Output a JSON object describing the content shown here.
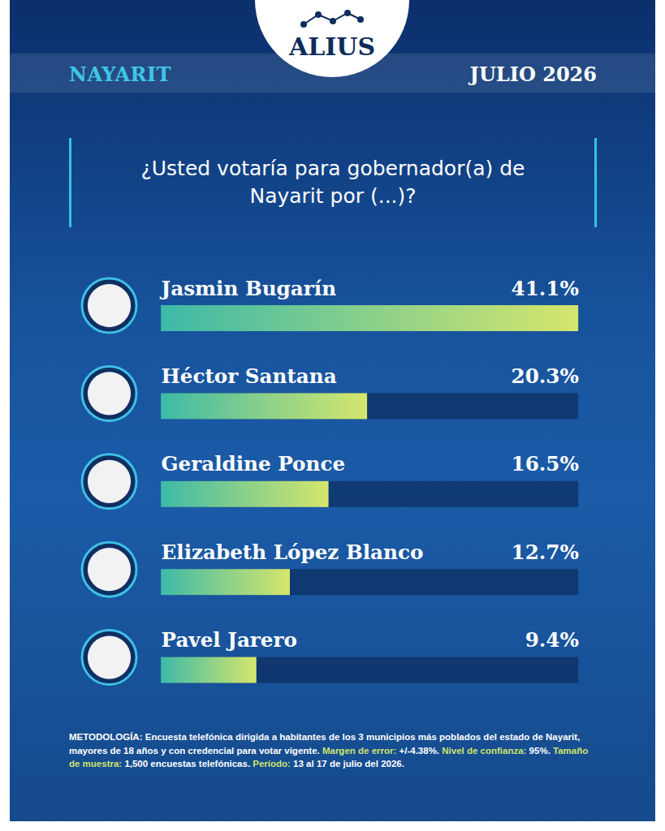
{
  "header": {
    "brand": "ALIUS",
    "region": "NAYARIT",
    "date": "JULIO 2026"
  },
  "chart_data": {
    "type": "bar",
    "orientation": "horizontal",
    "title": "¿Usted votaría para gobernador(a) de Nayarit por (...)?",
    "categories": [
      "Jasmin Bugarín",
      "Héctor Santana",
      "Geraldine Ponce",
      "Elizabeth López Blanco",
      "Pavel Jarero"
    ],
    "values": [
      41.1,
      20.3,
      16.5,
      12.7,
      9.4
    ],
    "value_labels": [
      "41.1%",
      "20.3%",
      "16.5%",
      "12.7%",
      "9.4%"
    ],
    "data_labels": true,
    "tick_labels": false,
    "grid": false,
    "xlim": [
      0,
      41.1
    ],
    "color": "#d6e66c"
  },
  "methodology": [
    {
      "label": "METODOLOGÍA:",
      "text": "Encuesta telefónica dirigida a habitantes de los 3 municipios más poblados del estado de Nayarit, mayores de 18 años y con credencial para votar vigente."
    },
    {
      "label": "Margen de error:",
      "text": "+/-4.38%."
    },
    {
      "label": "Nivel de confianza:",
      "text": "95%."
    },
    {
      "label": "Tamaño de muestra:",
      "text": "1,500 encuestas telefónicas."
    },
    {
      "label": "Período:",
      "text": "13 al 17 de julio del 2026."
    }
  ]
}
